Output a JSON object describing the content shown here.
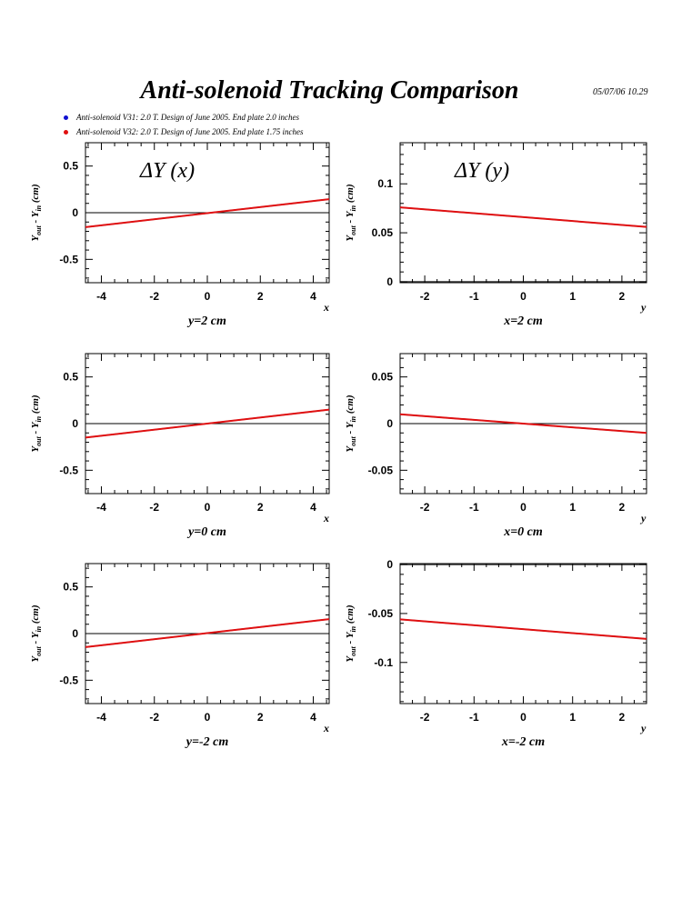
{
  "title": "Anti-solenoid Tracking Comparison",
  "timestamp": "05/07/06   10.29",
  "legend": [
    {
      "label": "Anti-solenoid V31: 2.0 T. Design of June 2005. End plate 2.0 inches",
      "color": "#1010d0"
    },
    {
      "label": "Anti-solenoid V32: 2.0 T. Design of June 2005. End plate 1.75 inches",
      "color": "#e01010"
    }
  ],
  "y_axis_label": {
    "main1": "Y",
    "sub1": "out",
    "mid": " - Y",
    "sub2": "in",
    "tail": " (cm)"
  },
  "colors": {
    "series_v31": "#1010d0",
    "series_v32": "#e01010",
    "zero_line": "#000000"
  },
  "chart_data": [
    {
      "type": "line",
      "panel_title": "ΔY (x)",
      "xlabel": "x",
      "caption": "y=2 cm",
      "xlim": [
        -4.6,
        4.6
      ],
      "ylim": [
        -0.75,
        0.75
      ],
      "xticks": [
        -4,
        -2,
        0,
        2,
        4
      ],
      "yticks": [
        -0.5,
        0,
        0.5
      ],
      "ytick_labels": [
        "-0.5",
        "0",
        "0.5"
      ],
      "series": [
        {
          "name": "Anti-solenoid V31",
          "x": [
            -4.6,
            4.6
          ],
          "y": [
            -0.155,
            0.145
          ]
        },
        {
          "name": "Anti-solenoid V32",
          "x": [
            -4.6,
            4.6
          ],
          "y": [
            -0.155,
            0.145
          ]
        }
      ]
    },
    {
      "type": "line",
      "panel_title": "ΔY (y)",
      "xlabel": "y",
      "caption": "x=2 cm",
      "xlim": [
        -2.5,
        2.5
      ],
      "ylim": [
        -0.001,
        0.142
      ],
      "xticks": [
        -2,
        -1,
        0,
        1,
        2
      ],
      "yticks": [
        0,
        0.05,
        0.1
      ],
      "ytick_labels": [
        "0",
        "0.05",
        "0.1"
      ],
      "series": [
        {
          "name": "Anti-solenoid V31",
          "x": [
            -2.5,
            2.5
          ],
          "y": [
            0.076,
            0.056
          ]
        },
        {
          "name": "Anti-solenoid V32",
          "x": [
            -2.5,
            2.5
          ],
          "y": [
            0.076,
            0.056
          ]
        }
      ]
    },
    {
      "type": "line",
      "panel_title": "",
      "xlabel": "x",
      "caption": "y=0 cm",
      "xlim": [
        -4.6,
        4.6
      ],
      "ylim": [
        -0.75,
        0.75
      ],
      "xticks": [
        -4,
        -2,
        0,
        2,
        4
      ],
      "yticks": [
        -0.5,
        0,
        0.5
      ],
      "ytick_labels": [
        "-0.5",
        "0",
        "0.5"
      ],
      "series": [
        {
          "name": "Anti-solenoid V31",
          "x": [
            -4.6,
            4.6
          ],
          "y": [
            -0.15,
            0.15
          ]
        },
        {
          "name": "Anti-solenoid V32",
          "x": [
            -4.6,
            4.6
          ],
          "y": [
            -0.15,
            0.15
          ]
        }
      ]
    },
    {
      "type": "line",
      "panel_title": "",
      "xlabel": "y",
      "caption": "x=0 cm",
      "xlim": [
        -2.5,
        2.5
      ],
      "ylim": [
        -0.075,
        0.075
      ],
      "xticks": [
        -2,
        -1,
        0,
        1,
        2
      ],
      "yticks": [
        -0.05,
        0,
        0.05
      ],
      "ytick_labels": [
        "-0.05",
        "0",
        "0.05"
      ],
      "series": [
        {
          "name": "Anti-solenoid V31",
          "x": [
            -2.5,
            2.5
          ],
          "y": [
            0.01,
            -0.01
          ]
        },
        {
          "name": "Anti-solenoid V32",
          "x": [
            -2.5,
            2.5
          ],
          "y": [
            0.01,
            -0.01
          ]
        }
      ]
    },
    {
      "type": "line",
      "panel_title": "",
      "xlabel": "x",
      "caption": "y=-2 cm",
      "xlim": [
        -4.6,
        4.6
      ],
      "ylim": [
        -0.75,
        0.75
      ],
      "xticks": [
        -4,
        -2,
        0,
        2,
        4
      ],
      "yticks": [
        -0.5,
        0,
        0.5
      ],
      "ytick_labels": [
        "-0.5",
        "0",
        "0.5"
      ],
      "series": [
        {
          "name": "Anti-solenoid V31",
          "x": [
            -4.6,
            4.6
          ],
          "y": [
            -0.145,
            0.155
          ]
        },
        {
          "name": "Anti-solenoid V32",
          "x": [
            -4.6,
            4.6
          ],
          "y": [
            -0.145,
            0.155
          ]
        }
      ]
    },
    {
      "type": "line",
      "panel_title": "",
      "xlabel": "y",
      "caption": "x=-2 cm",
      "xlim": [
        -2.5,
        2.5
      ],
      "ylim": [
        -0.142,
        0.001
      ],
      "xticks": [
        -2,
        -1,
        0,
        1,
        2
      ],
      "yticks": [
        -0.1,
        -0.05,
        0
      ],
      "ytick_labels": [
        "-0.1",
        "-0.05",
        "0"
      ],
      "series": [
        {
          "name": "Anti-solenoid V31",
          "x": [
            -2.5,
            2.5
          ],
          "y": [
            -0.056,
            -0.076
          ]
        },
        {
          "name": "Anti-solenoid V32",
          "x": [
            -2.5,
            2.5
          ],
          "y": [
            -0.056,
            -0.076
          ]
        }
      ]
    }
  ]
}
